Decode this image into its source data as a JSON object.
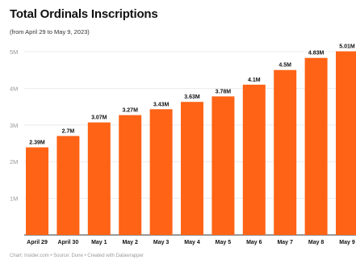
{
  "chart_data": {
    "type": "bar",
    "title": "Total Ordinals Inscriptions",
    "subtitle": "(from April 29 to May 9, 2023)",
    "categories": [
      "April 29",
      "April 30",
      "May 1",
      "May 2",
      "May 3",
      "May 4",
      "May 5",
      "May 6",
      "May 7",
      "May 8",
      "May 9"
    ],
    "values": [
      2.39,
      2.7,
      3.07,
      3.27,
      3.43,
      3.63,
      3.78,
      4.1,
      4.5,
      4.83,
      5.01
    ],
    "value_labels": [
      "2.39M",
      "2.7M",
      "3.07M",
      "3.27M",
      "3.43M",
      "3.63M",
      "3.78M",
      "4.1M",
      "4.5M",
      "4.83M",
      "5.01M"
    ],
    "yticks": [
      1,
      2,
      3,
      4,
      5
    ],
    "ytick_labels": [
      "1M",
      "2M",
      "3M",
      "4M",
      "5M"
    ],
    "ylim": [
      0,
      5
    ],
    "xlabel": "",
    "ylabel": "",
    "grid": true,
    "bar_color": "#ff6316",
    "footer": "Chart: Insider.com • Source: Dune • Created with Datawrapper"
  }
}
